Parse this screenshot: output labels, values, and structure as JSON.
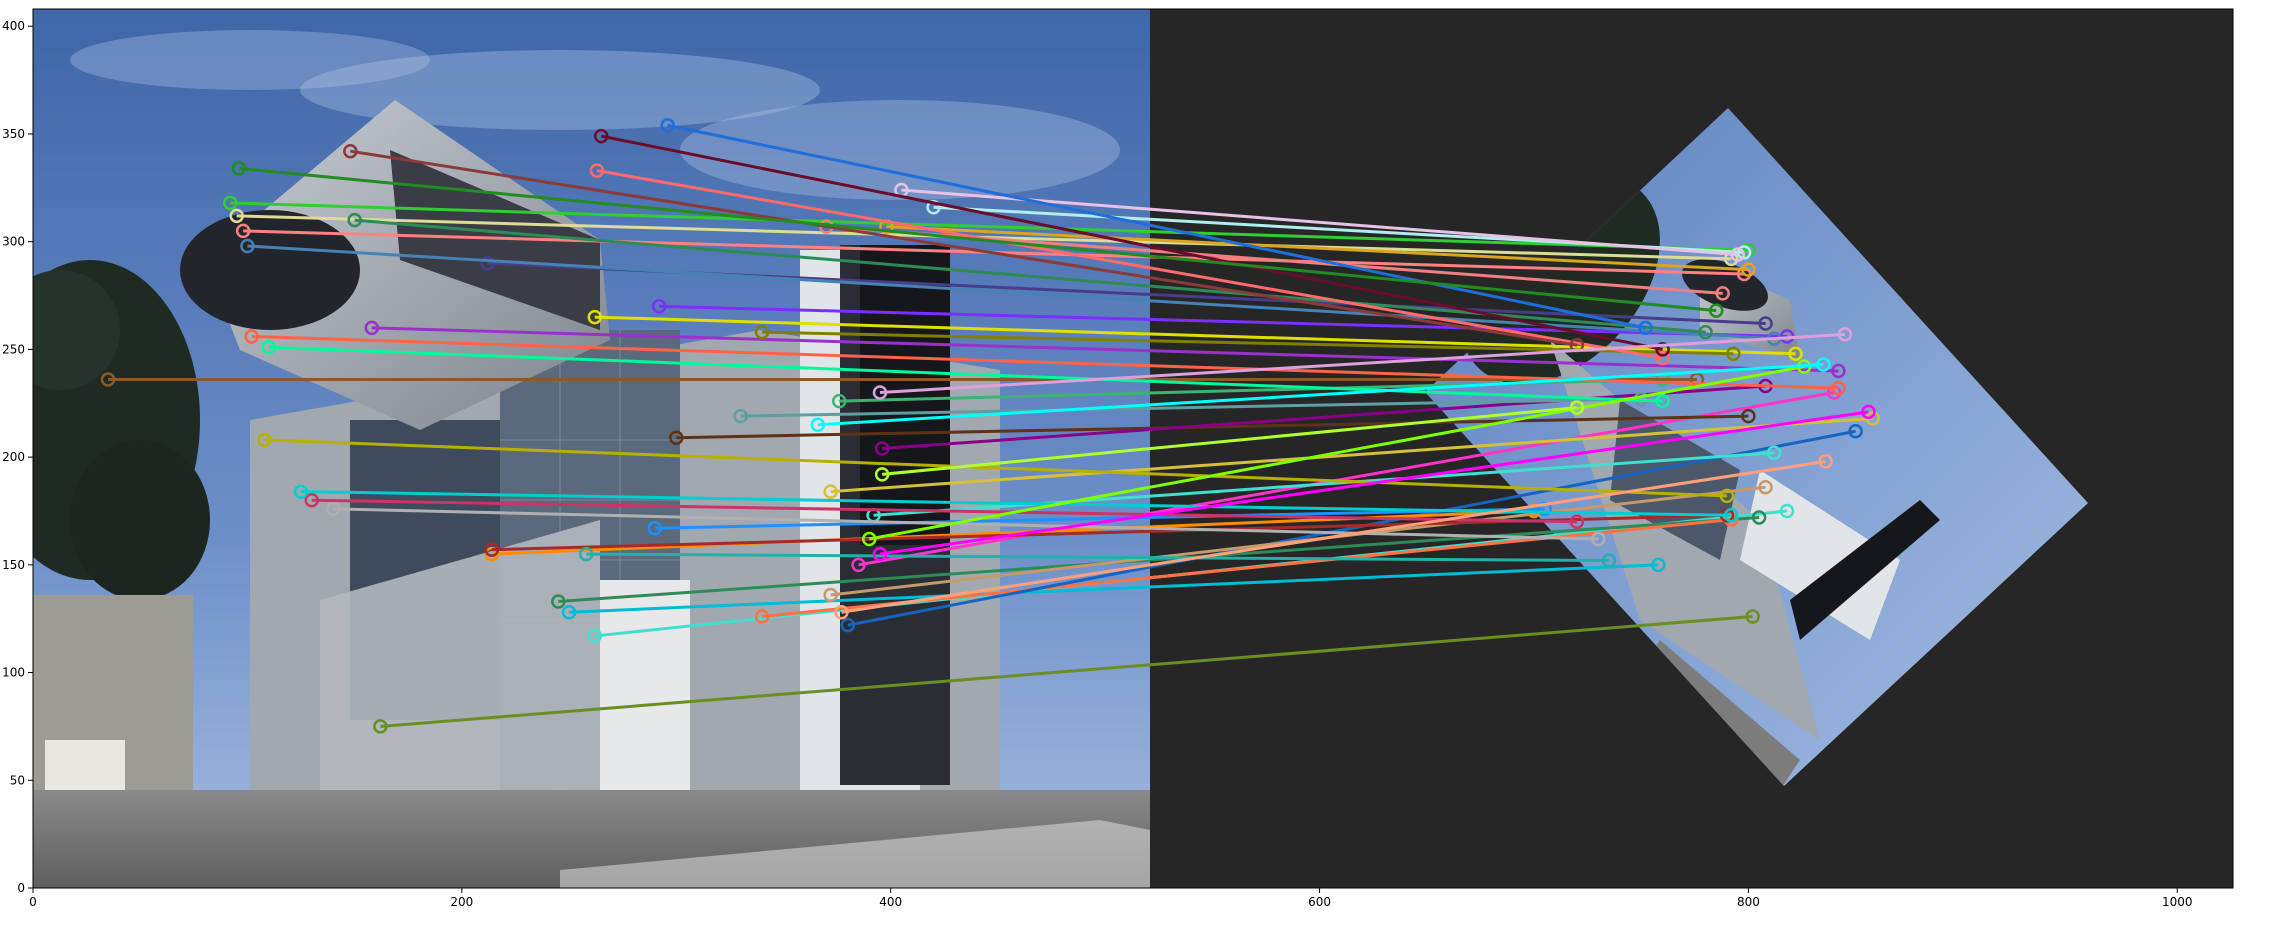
{
  "chart_data": {
    "type": "image",
    "description_note": "",
    "x_ticks": [
      "0",
      "200",
      "400",
      "600",
      "800",
      "1000"
    ],
    "y_ticks": [
      "0",
      "50",
      "100",
      "150",
      "200",
      "250",
      "300",
      "350",
      "400"
    ],
    "x_tick_values": [
      0,
      200,
      400,
      600,
      800,
      1000
    ],
    "y_tick_values": [
      0,
      50,
      100,
      150,
      200,
      250,
      300,
      350,
      400
    ],
    "xlim": [
      0,
      1026
    ],
    "ylim": [
      408,
      0
    ],
    "grid": false,
    "legend": "none",
    "colors": {
      "sky_top": "#3f66a8",
      "sky_bottom": "#86a6d6",
      "right_panel_bg": "#262626",
      "building_gray": "#8d939b",
      "building_dark": "#3a3d45",
      "ground": "#7c7c7c"
    },
    "matches": [
      {
        "src": [
          162,
          75
        ],
        "dst": [
          802,
          126
        ],
        "color": "#6b8e23"
      },
      {
        "src": [
          262,
          117
        ],
        "dst": [
          818,
          175
        ],
        "color": "#40e0d0"
      },
      {
        "src": [
          250,
          128
        ],
        "dst": [
          758,
          150
        ],
        "color": "#00bcd4"
      },
      {
        "src": [
          245,
          133
        ],
        "dst": [
          805,
          172
        ],
        "color": "#2e8b57"
      },
      {
        "src": [
          340,
          126
        ],
        "dst": [
          792,
          171
        ],
        "color": "#ff7043"
      },
      {
        "src": [
          380,
          122
        ],
        "dst": [
          850,
          212
        ],
        "color": "#1565c0"
      },
      {
        "src": [
          372,
          136
        ],
        "dst": [
          808,
          186
        ],
        "color": "#c49a6c"
      },
      {
        "src": [
          385,
          150
        ],
        "dst": [
          840,
          230
        ],
        "color": "#ff33cc"
      },
      {
        "src": [
          214,
          155
        ],
        "dst": [
          700,
          175
        ],
        "color": "#ff8c00"
      },
      {
        "src": [
          214,
          157
        ],
        "dst": [
          790,
          173
        ],
        "color": "#a52a2a"
      },
      {
        "src": [
          258,
          155
        ],
        "dst": [
          735,
          152
        ],
        "color": "#20b2aa"
      },
      {
        "src": [
          290,
          167
        ],
        "dst": [
          705,
          176
        ],
        "color": "#1e90ff"
      },
      {
        "src": [
          392,
          173
        ],
        "dst": [
          812,
          202
        ],
        "color": "#40e0d0"
      },
      {
        "src": [
          140,
          176
        ],
        "dst": [
          730,
          162
        ],
        "color": "#b0b0b0"
      },
      {
        "src": [
          130,
          180
        ],
        "dst": [
          720,
          170
        ],
        "color": "#cc3366"
      },
      {
        "src": [
          125,
          184
        ],
        "dst": [
          792,
          173
        ],
        "color": "#00ced1"
      },
      {
        "src": [
          372,
          184
        ],
        "dst": [
          858,
          218
        ],
        "color": "#d4c03a"
      },
      {
        "src": [
          108,
          208
        ],
        "dst": [
          790,
          182
        ],
        "color": "#b8b000"
      },
      {
        "src": [
          300,
          209
        ],
        "dst": [
          800,
          219
        ],
        "color": "#5c3317"
      },
      {
        "src": [
          396,
          204
        ],
        "dst": [
          808,
          233
        ],
        "color": "#8b008b"
      },
      {
        "src": [
          330,
          219
        ],
        "dst": [
          750,
          227
        ],
        "color": "#5f9ea0"
      },
      {
        "src": [
          376,
          226
        ],
        "dst": [
          760,
          236
        ],
        "color": "#3cb371"
      },
      {
        "src": [
          35,
          236
        ],
        "dst": [
          776,
          236
        ],
        "color": "#8b5a2b"
      },
      {
        "src": [
          110,
          251
        ],
        "dst": [
          760,
          226
        ],
        "color": "#00fa9a"
      },
      {
        "src": [
          102,
          256
        ],
        "dst": [
          842,
          232
        ],
        "color": "#ff6347"
      },
      {
        "src": [
          158,
          260
        ],
        "dst": [
          842,
          240
        ],
        "color": "#9932cc"
      },
      {
        "src": [
          262,
          265
        ],
        "dst": [
          822,
          248
        ],
        "color": "#e0e000"
      },
      {
        "src": [
          292,
          270
        ],
        "dst": [
          818,
          256
        ],
        "color": "#7b2fff"
      },
      {
        "src": [
          340,
          258
        ],
        "dst": [
          793,
          248
        ],
        "color": "#808000"
      },
      {
        "src": [
          212,
          290
        ],
        "dst": [
          808,
          262
        ],
        "color": "#483d8b"
      },
      {
        "src": [
          100,
          298
        ],
        "dst": [
          812,
          255
        ],
        "color": "#4682b4"
      },
      {
        "src": [
          98,
          305
        ],
        "dst": [
          798,
          285
        ],
        "color": "#ff8080"
      },
      {
        "src": [
          95,
          312
        ],
        "dst": [
          792,
          292
        ],
        "color": "#dcdc96"
      },
      {
        "src": [
          92,
          318
        ],
        "dst": [
          800,
          296
        ],
        "color": "#32cd32"
      },
      {
        "src": [
          150,
          310
        ],
        "dst": [
          780,
          258
        ],
        "color": "#2e8b57"
      },
      {
        "src": [
          370,
          307
        ],
        "dst": [
          788,
          276
        ],
        "color": "#f08080"
      },
      {
        "src": [
          398,
          307
        ],
        "dst": [
          800,
          287
        ],
        "color": "#daa520"
      },
      {
        "src": [
          420,
          316
        ],
        "dst": [
          798,
          295
        ],
        "color": "#afeeee"
      },
      {
        "src": [
          405,
          324
        ],
        "dst": [
          795,
          294
        ],
        "color": "#e6c3e6"
      },
      {
        "src": [
          263,
          333
        ],
        "dst": [
          760,
          246
        ],
        "color": "#ff6b6b"
      },
      {
        "src": [
          265,
          349
        ],
        "dst": [
          760,
          250
        ],
        "color": "#6a0d2b"
      },
      {
        "src": [
          296,
          354
        ],
        "dst": [
          752,
          260
        ],
        "color": "#1e6fd9"
      },
      {
        "src": [
          148,
          342
        ],
        "dst": [
          720,
          252
        ],
        "color": "#8b3a3a"
      },
      {
        "src": [
          395,
          230
        ],
        "dst": [
          845,
          257
        ],
        "color": "#dda0dd"
      },
      {
        "src": [
          395,
          155
        ],
        "dst": [
          856,
          221
        ],
        "color": "#ff00ff"
      },
      {
        "src": [
          390,
          162
        ],
        "dst": [
          826,
          242
        ],
        "color": "#7fff00"
      },
      {
        "src": [
          377,
          128
        ],
        "dst": [
          836,
          198
        ],
        "color": "#ffa07a"
      },
      {
        "src": [
          366,
          215
        ],
        "dst": [
          835,
          243
        ],
        "color": "#00ffff"
      },
      {
        "src": [
          396,
          192
        ],
        "dst": [
          720,
          223
        ],
        "color": "#adff2f"
      },
      {
        "src": [
          96,
          334
        ],
        "dst": [
          785,
          268
        ],
        "color": "#228b22"
      }
    ]
  }
}
